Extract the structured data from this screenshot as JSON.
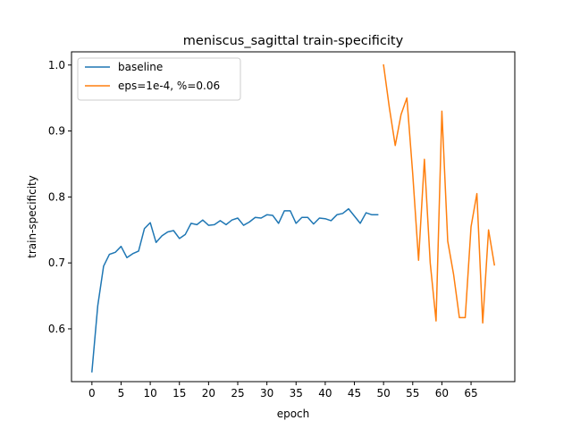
{
  "chart_data": {
    "type": "line",
    "title": "meniscus_sagittal train-specificity",
    "xlabel": "epoch",
    "ylabel": "train-specificity",
    "xlim": [
      -3.5,
      72.5
    ],
    "ylim": [
      0.52,
      1.02
    ],
    "xticks": [
      0,
      5,
      10,
      15,
      20,
      25,
      30,
      35,
      40,
      45,
      50,
      55,
      60,
      65
    ],
    "yticks": [
      0.6,
      0.7,
      0.8,
      0.9,
      1.0
    ],
    "ytick_labels": [
      "0.6",
      "0.7",
      "0.8",
      "0.9",
      "1.0"
    ],
    "grid": false,
    "legend_position": "top-left",
    "series": [
      {
        "name": "baseline",
        "color": "#1f77b4",
        "x": [
          0,
          1,
          2,
          3,
          4,
          5,
          6,
          7,
          8,
          9,
          10,
          11,
          12,
          13,
          14,
          15,
          16,
          17,
          18,
          19,
          20,
          21,
          22,
          23,
          24,
          25,
          26,
          27,
          28,
          29,
          30,
          31,
          32,
          33,
          34,
          35,
          36,
          37,
          38,
          39,
          40,
          41,
          42,
          43,
          44,
          45,
          46,
          47,
          48,
          49
        ],
        "values": [
          0.535,
          0.635,
          0.695,
          0.713,
          0.716,
          0.725,
          0.708,
          0.714,
          0.718,
          0.752,
          0.761,
          0.731,
          0.741,
          0.747,
          0.749,
          0.737,
          0.743,
          0.76,
          0.758,
          0.765,
          0.757,
          0.758,
          0.764,
          0.758,
          0.765,
          0.768,
          0.757,
          0.762,
          0.769,
          0.768,
          0.773,
          0.772,
          0.76,
          0.779,
          0.779,
          0.76,
          0.769,
          0.769,
          0.759,
          0.768,
          0.767,
          0.764,
          0.773,
          0.775,
          0.782,
          0.771,
          0.76,
          0.776,
          0.773,
          0.773
        ]
      },
      {
        "name": "eps=1e-4, %=0.06",
        "color": "#ff7f0e",
        "x": [
          50,
          51,
          52,
          53,
          54,
          55,
          56,
          57,
          58,
          59,
          60,
          61,
          62,
          63,
          64,
          65,
          66,
          67,
          68,
          69
        ],
        "values": [
          1.0,
          0.935,
          0.878,
          0.925,
          0.95,
          0.835,
          0.704,
          0.857,
          0.7,
          0.612,
          0.93,
          0.733,
          0.683,
          0.617,
          0.617,
          0.755,
          0.805,
          0.609,
          0.75,
          0.697
        ]
      }
    ]
  }
}
